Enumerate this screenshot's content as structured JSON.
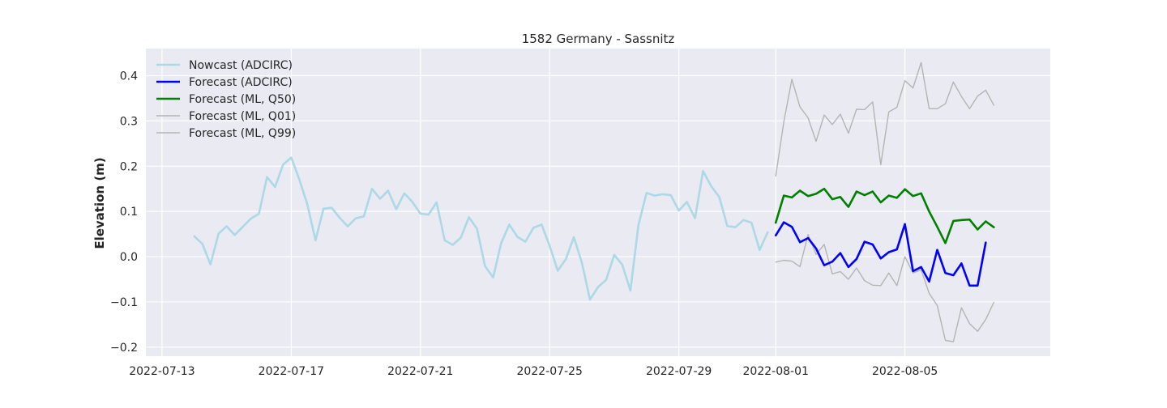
{
  "chart_data": {
    "type": "line",
    "title": "1582 Germany - Sassnitz",
    "xlabel": "",
    "ylabel": "Elevation (m)",
    "xlim": [
      "2022-07-12T12:00",
      "2022-08-09T12:00"
    ],
    "ylim": [
      -0.22,
      0.46
    ],
    "grid": true,
    "legend_position": "top-left",
    "x_ticks": [
      "2022-07-13",
      "2022-07-17",
      "2022-07-21",
      "2022-07-25",
      "2022-07-29",
      "2022-08-01",
      "2022-08-05"
    ],
    "y_ticks": [
      0.4,
      0.3,
      0.2,
      0.1,
      0.0,
      -0.1,
      -0.2
    ],
    "y_tick_labels": [
      "0.4",
      "0.3",
      "0.2",
      "0.1",
      "0.0",
      "−0.1",
      "−0.2"
    ],
    "series": [
      {
        "name": "Nowcast (ADCIRC)",
        "color": "#add8e6",
        "start": "2022-07-14T00:00",
        "step_hours": 6,
        "values": [
          0.045,
          0.028,
          -0.017,
          0.051,
          0.067,
          0.048,
          0.066,
          0.084,
          0.095,
          0.176,
          0.154,
          0.204,
          0.219,
          0.171,
          0.115,
          0.036,
          0.106,
          0.108,
          0.086,
          0.067,
          0.085,
          0.089,
          0.15,
          0.128,
          0.146,
          0.105,
          0.14,
          0.121,
          0.095,
          0.093,
          0.12,
          0.036,
          0.026,
          0.042,
          0.087,
          0.062,
          -0.021,
          -0.046,
          0.03,
          0.071,
          0.044,
          0.033,
          0.064,
          0.071,
          0.024,
          -0.031,
          -0.006,
          0.043,
          -0.014,
          -0.095,
          -0.067,
          -0.051,
          0.004,
          -0.018,
          -0.075,
          0.07,
          0.141,
          0.135,
          0.138,
          0.136,
          0.102,
          0.121,
          0.085,
          0.189,
          0.156,
          0.132,
          0.068,
          0.065,
          0.081,
          0.075,
          0.015,
          0.054
        ]
      },
      {
        "name": "Forecast (ADCIRC)",
        "color": "#0000ff",
        "start": "2022-08-01T00:00",
        "step_hours": 6,
        "values": [
          0.047,
          0.076,
          0.066,
          0.032,
          0.041,
          0.018,
          -0.019,
          -0.011,
          0.008,
          -0.023,
          -0.005,
          0.033,
          0.027,
          -0.004,
          0.01,
          0.016,
          0.072,
          -0.032,
          -0.023,
          -0.055,
          0.015,
          -0.036,
          -0.041,
          -0.015,
          -0.064,
          -0.064,
          0.031
        ]
      },
      {
        "name": "Forecast (ML, Q50)",
        "color": "#008000",
        "start": "2022-08-01T00:00",
        "step_hours": 6,
        "values": [
          0.075,
          0.135,
          0.131,
          0.146,
          0.134,
          0.139,
          0.15,
          0.127,
          0.132,
          0.11,
          0.144,
          0.136,
          0.144,
          0.12,
          0.135,
          0.13,
          0.149,
          0.134,
          0.14,
          0.1,
          0.066,
          0.03,
          0.079,
          0.081,
          0.082,
          0.06,
          0.078,
          0.065
        ]
      },
      {
        "name": "Forecast (ML, Q01)",
        "color": "#b4b4b4",
        "start": "2022-08-01T00:00",
        "step_hours": 6,
        "values": [
          -0.012,
          -0.008,
          -0.01,
          -0.022,
          0.049,
          0.005,
          0.027,
          -0.038,
          -0.033,
          -0.05,
          -0.025,
          -0.053,
          -0.063,
          -0.064,
          -0.036,
          -0.064,
          0.0,
          -0.036,
          -0.029,
          -0.081,
          -0.108,
          -0.185,
          -0.188,
          -0.113,
          -0.148,
          -0.165,
          -0.139,
          -0.101
        ]
      },
      {
        "name": "Forecast (ML, Q99)",
        "color": "#b4b4b4",
        "start": "2022-08-01T00:00",
        "step_hours": 6,
        "values": [
          0.178,
          0.298,
          0.392,
          0.331,
          0.307,
          0.255,
          0.313,
          0.292,
          0.315,
          0.273,
          0.326,
          0.325,
          0.342,
          0.203,
          0.32,
          0.33,
          0.389,
          0.373,
          0.429,
          0.327,
          0.327,
          0.338,
          0.386,
          0.354,
          0.327,
          0.355,
          0.368,
          0.335
        ]
      }
    ]
  }
}
